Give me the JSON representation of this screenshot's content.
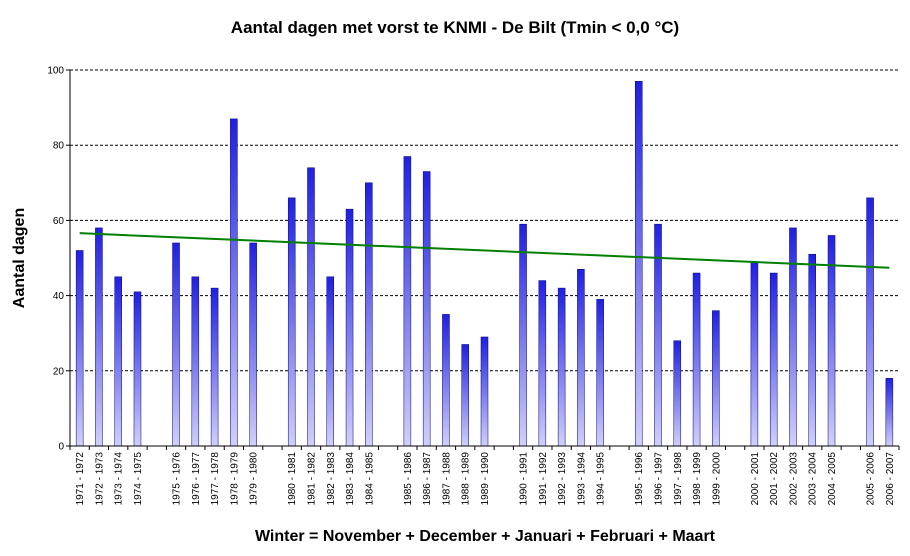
{
  "chart_data": {
    "type": "bar",
    "title": "Aantal dagen met vorst te KNMI - De Bilt (Tmin < 0,0 °C)",
    "xlabel": "Winter = November + December + Januari + Februari + Maart",
    "ylabel": "Aantal dagen",
    "ylim": [
      0,
      100
    ],
    "yticks": [
      0,
      20,
      40,
      60,
      80,
      100
    ],
    "grid": true,
    "categories": [
      "1971 - 1972",
      "1972 - 1973",
      "1973 - 1974",
      "1974 - 1975",
      "",
      "1975 - 1976",
      "1976 - 1977",
      "1977 - 1978",
      "1978 - 1979",
      "1979 - 1980",
      "",
      "1980 - 1981",
      "1981 - 1982",
      "1982 - 1983",
      "1983 - 1984",
      "1984 - 1985",
      "",
      "1985 - 1986",
      "1986 - 1987",
      "1987 - 1988",
      "1988 - 1989",
      "1989 - 1990",
      "",
      "1990 - 1991",
      "1991 - 1992",
      "1992 - 1993",
      "1993 - 1994",
      "1994 - 1995",
      "",
      "1995 - 1996",
      "1996 - 1997",
      "1997 - 1998",
      "1998 - 1999",
      "1999 - 2000",
      "",
      "2000 - 2001",
      "2001 - 2002",
      "2002 - 2003",
      "2003 - 2004",
      "2004 - 2005",
      "",
      "2005 - 2006",
      "2006 - 2007"
    ],
    "values": [
      52,
      58,
      45,
      41,
      null,
      54,
      45,
      42,
      87,
      54,
      null,
      66,
      74,
      45,
      63,
      70,
      null,
      77,
      73,
      35,
      27,
      29,
      null,
      59,
      44,
      42,
      47,
      39,
      null,
      97,
      59,
      28,
      46,
      36,
      null,
      49,
      46,
      58,
      51,
      56,
      null,
      66,
      18
    ],
    "trendline": {
      "start": 56.6,
      "end": 47.4
    },
    "colors": {
      "bar_top": "#2020e0",
      "bar_bottom": "#d0d0f8",
      "trend": "#008000",
      "grid": "#000000"
    }
  }
}
